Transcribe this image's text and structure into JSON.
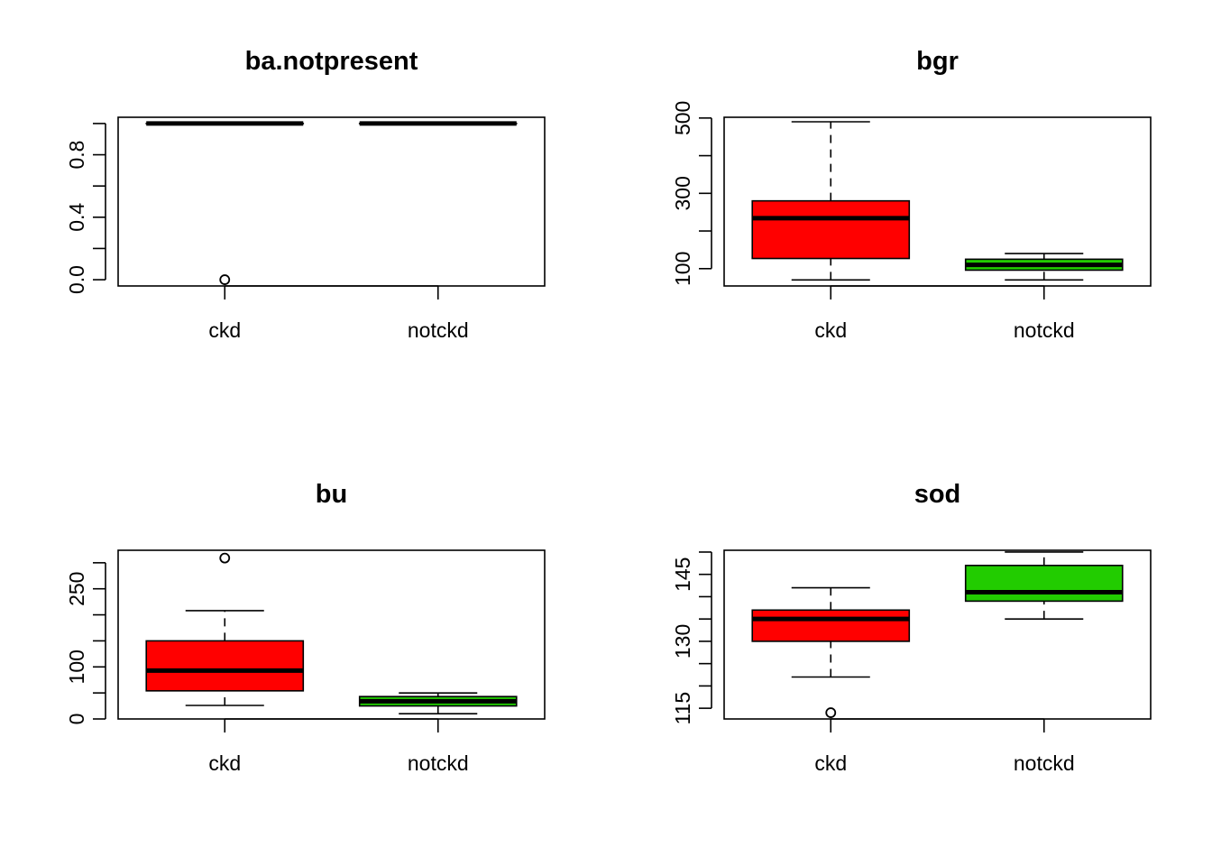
{
  "chart_data": [
    {
      "type": "boxplot",
      "title": "ba.notpresent",
      "categories": [
        "ckd",
        "notckd"
      ],
      "ylim": [
        -0.04,
        1.04
      ],
      "yticks": [
        0.0,
        0.2,
        0.4,
        0.6,
        0.8,
        1.0
      ],
      "ytick_labels": [
        "0.0",
        "",
        "0.4",
        "",
        "0.8",
        ""
      ],
      "boxes": [
        {
          "category": "ckd",
          "color": "#FF0000",
          "whisker_low": 1,
          "q1": 1,
          "median": 1,
          "q3": 1,
          "whisker_high": 1,
          "outliers": [
            0
          ]
        },
        {
          "category": "notckd",
          "color": "#22CC00",
          "whisker_low": 1,
          "q1": 1,
          "median": 1,
          "q3": 1,
          "whisker_high": 1,
          "outliers": []
        }
      ]
    },
    {
      "type": "boxplot",
      "title": "bgr",
      "categories": [
        "ckd",
        "notckd"
      ],
      "ylim": [
        54,
        502
      ],
      "yticks": [
        100,
        200,
        300,
        400,
        500
      ],
      "ytick_labels": [
        "100",
        "",
        "300",
        "",
        "500"
      ],
      "boxes": [
        {
          "category": "ckd",
          "color": "#FF0000",
          "whisker_low": 70,
          "q1": 127,
          "median": 234,
          "q3": 280,
          "whisker_high": 490,
          "outliers": []
        },
        {
          "category": "notckd",
          "color": "#22CC00",
          "whisker_low": 70,
          "q1": 96,
          "median": 110,
          "q3": 125,
          "whisker_high": 140,
          "outliers": []
        }
      ]
    },
    {
      "type": "boxplot",
      "title": "bu",
      "categories": [
        "ckd",
        "notckd"
      ],
      "ylim": [
        0,
        324
      ],
      "yticks": [
        0,
        50,
        100,
        150,
        200,
        250,
        300
      ],
      "ytick_labels": [
        "0",
        "",
        "100",
        "",
        "",
        "250",
        ""
      ],
      "boxes": [
        {
          "category": "ckd",
          "color": "#FF0000",
          "whisker_low": 26,
          "q1": 54,
          "median": 93,
          "q3": 150,
          "whisker_high": 208,
          "outliers": [
            309
          ]
        },
        {
          "category": "notckd",
          "color": "#22CC00",
          "whisker_low": 10,
          "q1": 25,
          "median": 34,
          "q3": 43,
          "whisker_high": 50,
          "outliers": []
        }
      ]
    },
    {
      "type": "boxplot",
      "title": "sod",
      "categories": [
        "ckd",
        "notckd"
      ],
      "ylim": [
        112.6,
        150.4
      ],
      "yticks": [
        115,
        120,
        125,
        130,
        135,
        140,
        145,
        150
      ],
      "ytick_labels": [
        "115",
        "",
        "",
        "130",
        "",
        "",
        "145",
        ""
      ],
      "boxes": [
        {
          "category": "ckd",
          "color": "#FF0000",
          "whisker_low": 122,
          "q1": 130,
          "median": 135,
          "q3": 137,
          "whisker_high": 142,
          "outliers": [
            114
          ]
        },
        {
          "category": "notckd",
          "color": "#22CC00",
          "whisker_low": 135,
          "q1": 139,
          "median": 141,
          "q3": 147,
          "whisker_high": 150,
          "outliers": []
        }
      ]
    }
  ]
}
